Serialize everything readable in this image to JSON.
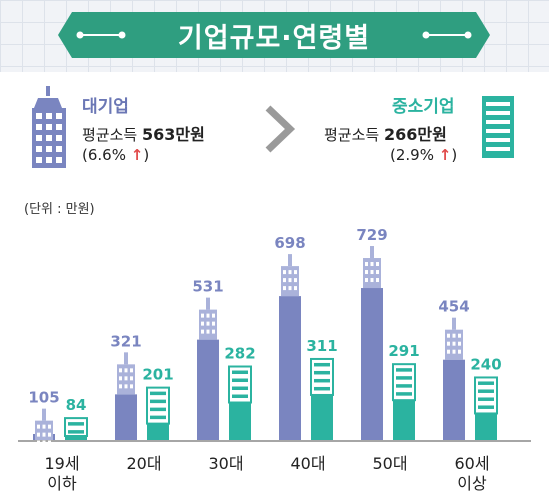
{
  "header": {
    "title": "기업규모·연령별"
  },
  "large_company": {
    "name": "대기업",
    "income_label": "평균소득",
    "income_value": "563만원",
    "change": "(6.6%"
  },
  "small_company": {
    "name": "중소기업",
    "income_label": "평균소득",
    "income_value": "266만원",
    "change": "(2.9%"
  },
  "colors": {
    "large": "#7a85c0",
    "small": "#2bb3a0",
    "banner": "#2f9e80",
    "up_arrow": "#e14b4b"
  },
  "chart_data": {
    "type": "bar",
    "unit_label": "(단위 : 만원)",
    "categories": [
      [
        "19세",
        "이하"
      ],
      [
        "20대"
      ],
      [
        "30대"
      ],
      [
        "40대"
      ],
      [
        "50대"
      ],
      [
        "60세",
        "이상"
      ]
    ],
    "series": [
      {
        "name": "대기업",
        "values": [
          105,
          321,
          531,
          698,
          729,
          454
        ]
      },
      {
        "name": "중소기업",
        "values": [
          84,
          201,
          282,
          311,
          291,
          240
        ]
      }
    ]
  }
}
